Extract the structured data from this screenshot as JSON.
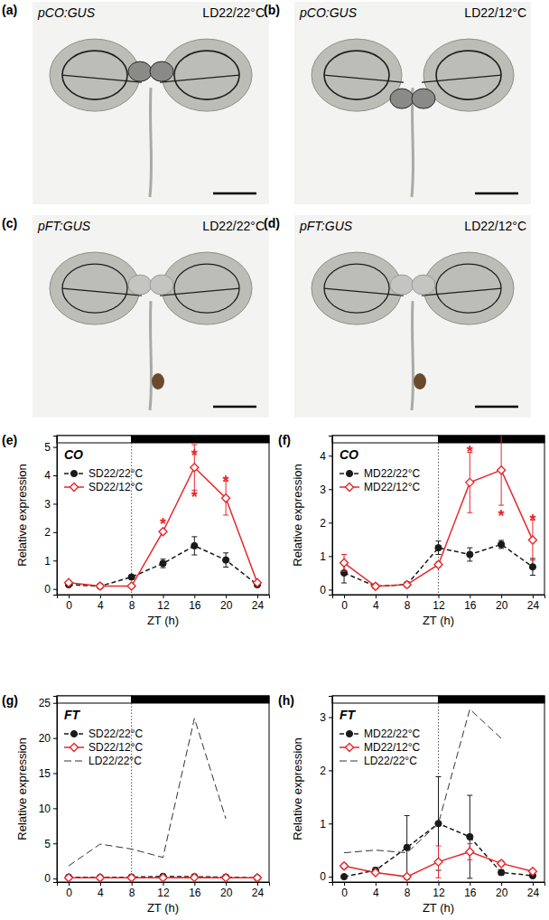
{
  "photos": [
    {
      "panel": "(a)",
      "construct": "pCO:GUS",
      "condition": "LD22/22°C"
    },
    {
      "panel": "(b)",
      "construct": "pCO:GUS",
      "condition": "LD22/12°C"
    },
    {
      "panel": "(c)",
      "construct": "pFT:GUS",
      "condition": "LD22/22°C"
    },
    {
      "panel": "(d)",
      "construct": "pFT:GUS",
      "condition": "LD22/12°C"
    }
  ],
  "chart_data": [
    {
      "type": "line",
      "panel": "(e)",
      "title": "CO",
      "xlabel": "ZT (h)",
      "ylabel": "Relative expression",
      "x": [
        0,
        4,
        8,
        12,
        16,
        20,
        24
      ],
      "xlim": [
        -1.5,
        25.5
      ],
      "xticks": [
        0,
        4,
        8,
        12,
        16,
        20,
        24
      ],
      "ylim": [
        -0.2,
        5.4
      ],
      "yticks": [
        0,
        1,
        2,
        3,
        4,
        5
      ],
      "dark_from": 8,
      "legend": "upper left",
      "series": [
        {
          "name": "SD22/22°C",
          "color": "#1a1a1a",
          "marker": "circle",
          "line_style": "dashed",
          "values": [
            0.15,
            0.1,
            0.42,
            0.9,
            1.52,
            1.02,
            0.15
          ],
          "errors": [
            0.04,
            0.03,
            0.05,
            0.15,
            0.32,
            0.25,
            0.04
          ]
        },
        {
          "name": "SD22/12°C",
          "color": "#e8262a",
          "marker": "diamond",
          "line_style": "solid",
          "values": [
            0.22,
            0.1,
            0.1,
            2.02,
            4.28,
            3.2,
            0.22
          ],
          "errors": [
            0.05,
            0.03,
            0.03,
            0.06,
            0.8,
            0.6,
            0.04
          ]
        }
      ],
      "annotations": [
        {
          "text": "*",
          "x": 12,
          "y": 2.45
        },
        {
          "text": "*",
          "x": 16,
          "y": 4.85
        },
        {
          "text": "*",
          "x": 16,
          "y": 3.4
        },
        {
          "text": "*",
          "x": 20,
          "y": 3.95
        }
      ]
    },
    {
      "type": "line",
      "panel": "(f)",
      "title": "CO",
      "xlabel": "ZT (h)",
      "ylabel": "Relative expression",
      "x": [
        0,
        4,
        8,
        12,
        16,
        20,
        24
      ],
      "xlim": [
        -1.5,
        25.5
      ],
      "xticks": [
        0,
        4,
        8,
        12,
        16,
        20,
        24
      ],
      "ylim": [
        -0.15,
        4.6
      ],
      "yticks": [
        0,
        1,
        2,
        3,
        4
      ],
      "dark_from": 12,
      "legend": "upper left",
      "series": [
        {
          "name": "MD22/22°C",
          "color": "#1a1a1a",
          "marker": "circle",
          "line_style": "dashed",
          "values": [
            0.5,
            0.1,
            0.15,
            1.25,
            1.05,
            1.35,
            0.68
          ],
          "errors": [
            0.3,
            0.03,
            0.04,
            0.2,
            0.2,
            0.12,
            0.25
          ]
        },
        {
          "name": "MD22/12°C",
          "color": "#e8262a",
          "marker": "diamond",
          "line_style": "solid",
          "values": [
            0.8,
            0.1,
            0.15,
            0.75,
            3.2,
            3.57,
            1.48
          ],
          "errors": [
            0.25,
            0.03,
            0.04,
            0.08,
            0.9,
            1.05,
            0.6
          ]
        }
      ],
      "annotations": [
        {
          "text": "*",
          "x": 16,
          "y": 4.25
        },
        {
          "text": "*",
          "x": 20,
          "y": 2.35
        },
        {
          "text": "*",
          "x": 24,
          "y": 2.2
        }
      ]
    },
    {
      "type": "line",
      "panel": "(g)",
      "title": "FT",
      "xlabel": "ZT (h)",
      "ylabel": "Relative expression",
      "x": [
        0,
        4,
        8,
        12,
        16,
        20,
        24
      ],
      "xlim": [
        -1.5,
        25.5
      ],
      "xticks": [
        0,
        4,
        8,
        12,
        16,
        20,
        24
      ],
      "ylim": [
        -0.5,
        26
      ],
      "yticks": [
        0,
        5,
        10,
        15,
        20,
        25
      ],
      "dark_from": 8,
      "legend": "upper left",
      "series": [
        {
          "name": "SD22/22°C",
          "color": "#1a1a1a",
          "marker": "circle",
          "line_style": "dashed",
          "values": [
            0.2,
            0.15,
            0.2,
            0.3,
            0.25,
            0.2,
            0.1
          ],
          "errors": [
            0.1,
            0.1,
            0.1,
            0.15,
            0.1,
            0.1,
            0.05
          ]
        },
        {
          "name": "SD22/12°C",
          "color": "#e8262a",
          "marker": "diamond",
          "line_style": "solid",
          "values": [
            0.1,
            0.1,
            0.1,
            0.1,
            0.15,
            0.1,
            0.1
          ],
          "errors": [
            0.05,
            0.05,
            0.05,
            0.05,
            0.05,
            0.05,
            0.05
          ]
        },
        {
          "name": "LD22/22°C",
          "color": "#333333",
          "marker": "none",
          "line_style": "longdash",
          "values": [
            1.8,
            4.9,
            4.2,
            3.0,
            22.8,
            8.5,
            null
          ]
        }
      ]
    },
    {
      "type": "line",
      "panel": "(h)",
      "title": "FT",
      "xlabel": "ZT (h)",
      "ylabel": "Relative expression",
      "x": [
        0,
        4,
        8,
        12,
        16,
        20,
        24
      ],
      "xlim": [
        -1.5,
        25.5
      ],
      "xticks": [
        0,
        4,
        8,
        12,
        16,
        20,
        24
      ],
      "ylim": [
        -0.1,
        3.4
      ],
      "yticks": [
        0,
        1,
        2,
        3
      ],
      "dark_from": 12,
      "legend": "upper left",
      "series": [
        {
          "name": "MD22/22°C",
          "color": "#1a1a1a",
          "marker": "circle",
          "line_style": "dashed",
          "values": [
            0.0,
            0.12,
            0.55,
            1.0,
            0.75,
            0.08,
            0.02
          ],
          "errors": [
            0.02,
            0.05,
            0.6,
            0.88,
            0.78,
            0.05,
            0.02
          ]
        },
        {
          "name": "MD22/12°C",
          "color": "#e8262a",
          "marker": "diamond",
          "line_style": "solid",
          "values": [
            0.2,
            0.08,
            0.0,
            0.28,
            0.47,
            0.25,
            0.1
          ],
          "errors": [
            0.05,
            0.03,
            0.02,
            0.3,
            0.15,
            0.05,
            0.03
          ]
        },
        {
          "name": "LD22/22°C",
          "color": "#333333",
          "marker": "none",
          "line_style": "longdash",
          "values": [
            0.45,
            0.5,
            0.45,
            1.0,
            3.15,
            2.6,
            null
          ]
        }
      ]
    }
  ]
}
